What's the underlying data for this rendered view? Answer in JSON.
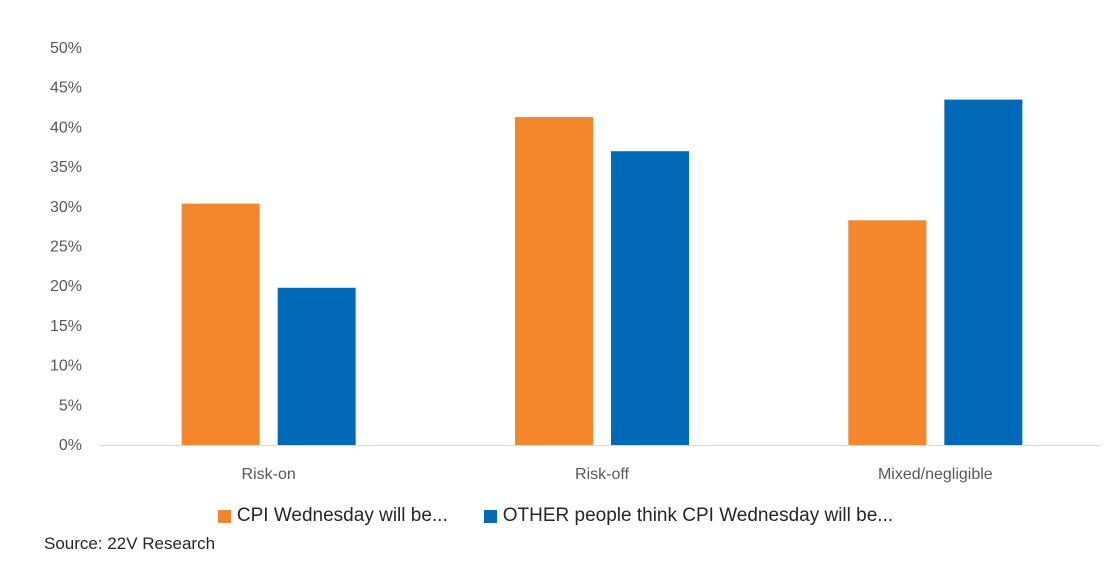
{
  "chart_data": {
    "type": "bar",
    "categories": [
      "Risk-on",
      "Risk-off",
      "Mixed/negligible"
    ],
    "series": [
      {
        "name": "CPI Wednesday will be...",
        "color": "#F4862B",
        "values": [
          30.4,
          41.3,
          28.3
        ]
      },
      {
        "name": "OTHER people think CPI Wednesday will be...",
        "color": "#006AB6",
        "values": [
          19.8,
          37.0,
          43.5
        ]
      }
    ],
    "yticks": [
      "0%",
      "5%",
      "10%",
      "15%",
      "20%",
      "25%",
      "30%",
      "35%",
      "40%",
      "45%",
      "50%"
    ],
    "ylim": [
      0,
      50
    ],
    "grid": false,
    "legend_position": "bottom"
  },
  "source": "Source: 22V Research"
}
